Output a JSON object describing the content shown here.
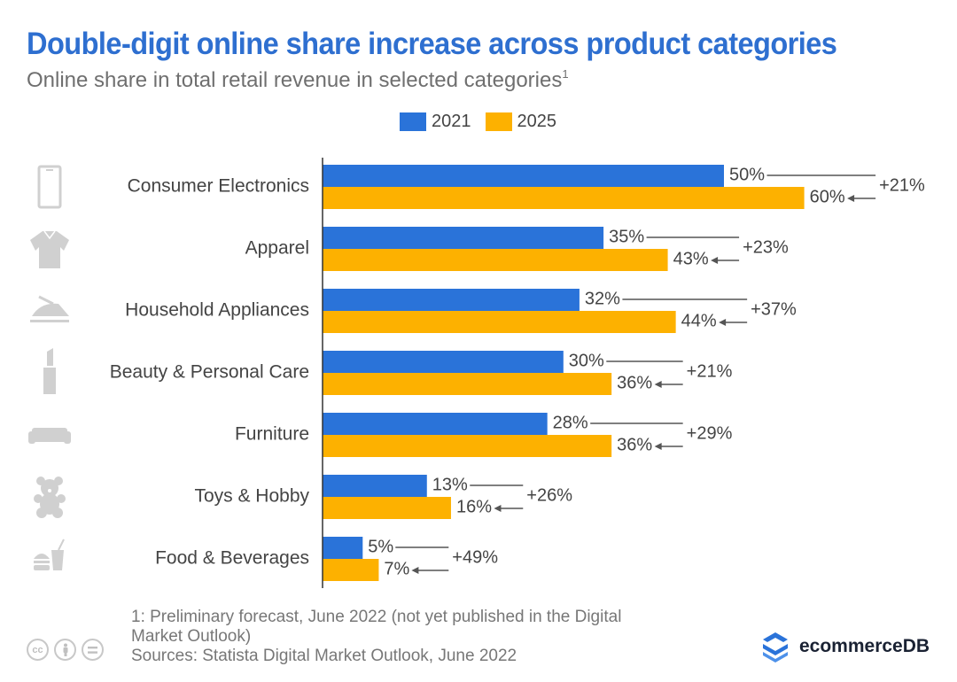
{
  "header": {
    "title": "Double-digit online share increase across product categories",
    "subtitle": "Online share in total retail revenue in selected categories",
    "subtitle_footnote": "1"
  },
  "legend": {
    "items": [
      {
        "label": "2021",
        "color": "#2a73d9"
      },
      {
        "label": "2025",
        "color": "#fdb100"
      }
    ]
  },
  "chart_data": {
    "type": "bar",
    "orientation": "horizontal",
    "title": "Double-digit online share increase across product categories",
    "subtitle": "Online share in total retail revenue in selected categories",
    "xlabel": "",
    "ylabel": "",
    "unit": "%",
    "xlim": [
      0,
      60
    ],
    "grid": false,
    "legend_position": "top-center",
    "categories": [
      "Consumer Electronics",
      "Apparel",
      "Household Appliances",
      "Beauty & Personal Care",
      "Furniture",
      "Toys & Hobby",
      "Food & Beverages"
    ],
    "icons": [
      "smartphone-icon",
      "shirt-icon",
      "iron-icon",
      "lipstick-icon",
      "sofa-icon",
      "teddy-bear-icon",
      "fast-food-icon"
    ],
    "series": [
      {
        "name": "2021",
        "color": "#2a73d9",
        "values": [
          50,
          35,
          32,
          30,
          28,
          13,
          5
        ],
        "labels": [
          "50%",
          "35%",
          "32%",
          "30%",
          "28%",
          "13%",
          "5%"
        ]
      },
      {
        "name": "2025",
        "color": "#fdb100",
        "values": [
          60,
          43,
          44,
          36,
          36,
          16,
          7
        ],
        "labels": [
          "60%",
          "43%",
          "44%",
          "36%",
          "36%",
          "16%",
          "7%"
        ]
      }
    ],
    "growth_labels": [
      "+21%",
      "+23%",
      "+37%",
      "+21%",
      "+29%",
      "+26%",
      "+49%"
    ]
  },
  "footer": {
    "note_line1": "1: Preliminary forecast, June 2022 (not yet published in the Digital",
    "note_line2": "Market Outlook)",
    "source": "Sources: Statista Digital Market Outlook, June 2022",
    "license_icons": [
      "cc",
      "i",
      "="
    ]
  },
  "brand": {
    "name": "ecommerceDB",
    "color": "#2a73d9"
  },
  "colors": {
    "title": "#2e6fd0",
    "text": "#444444",
    "icon": "#d0d0d0"
  }
}
